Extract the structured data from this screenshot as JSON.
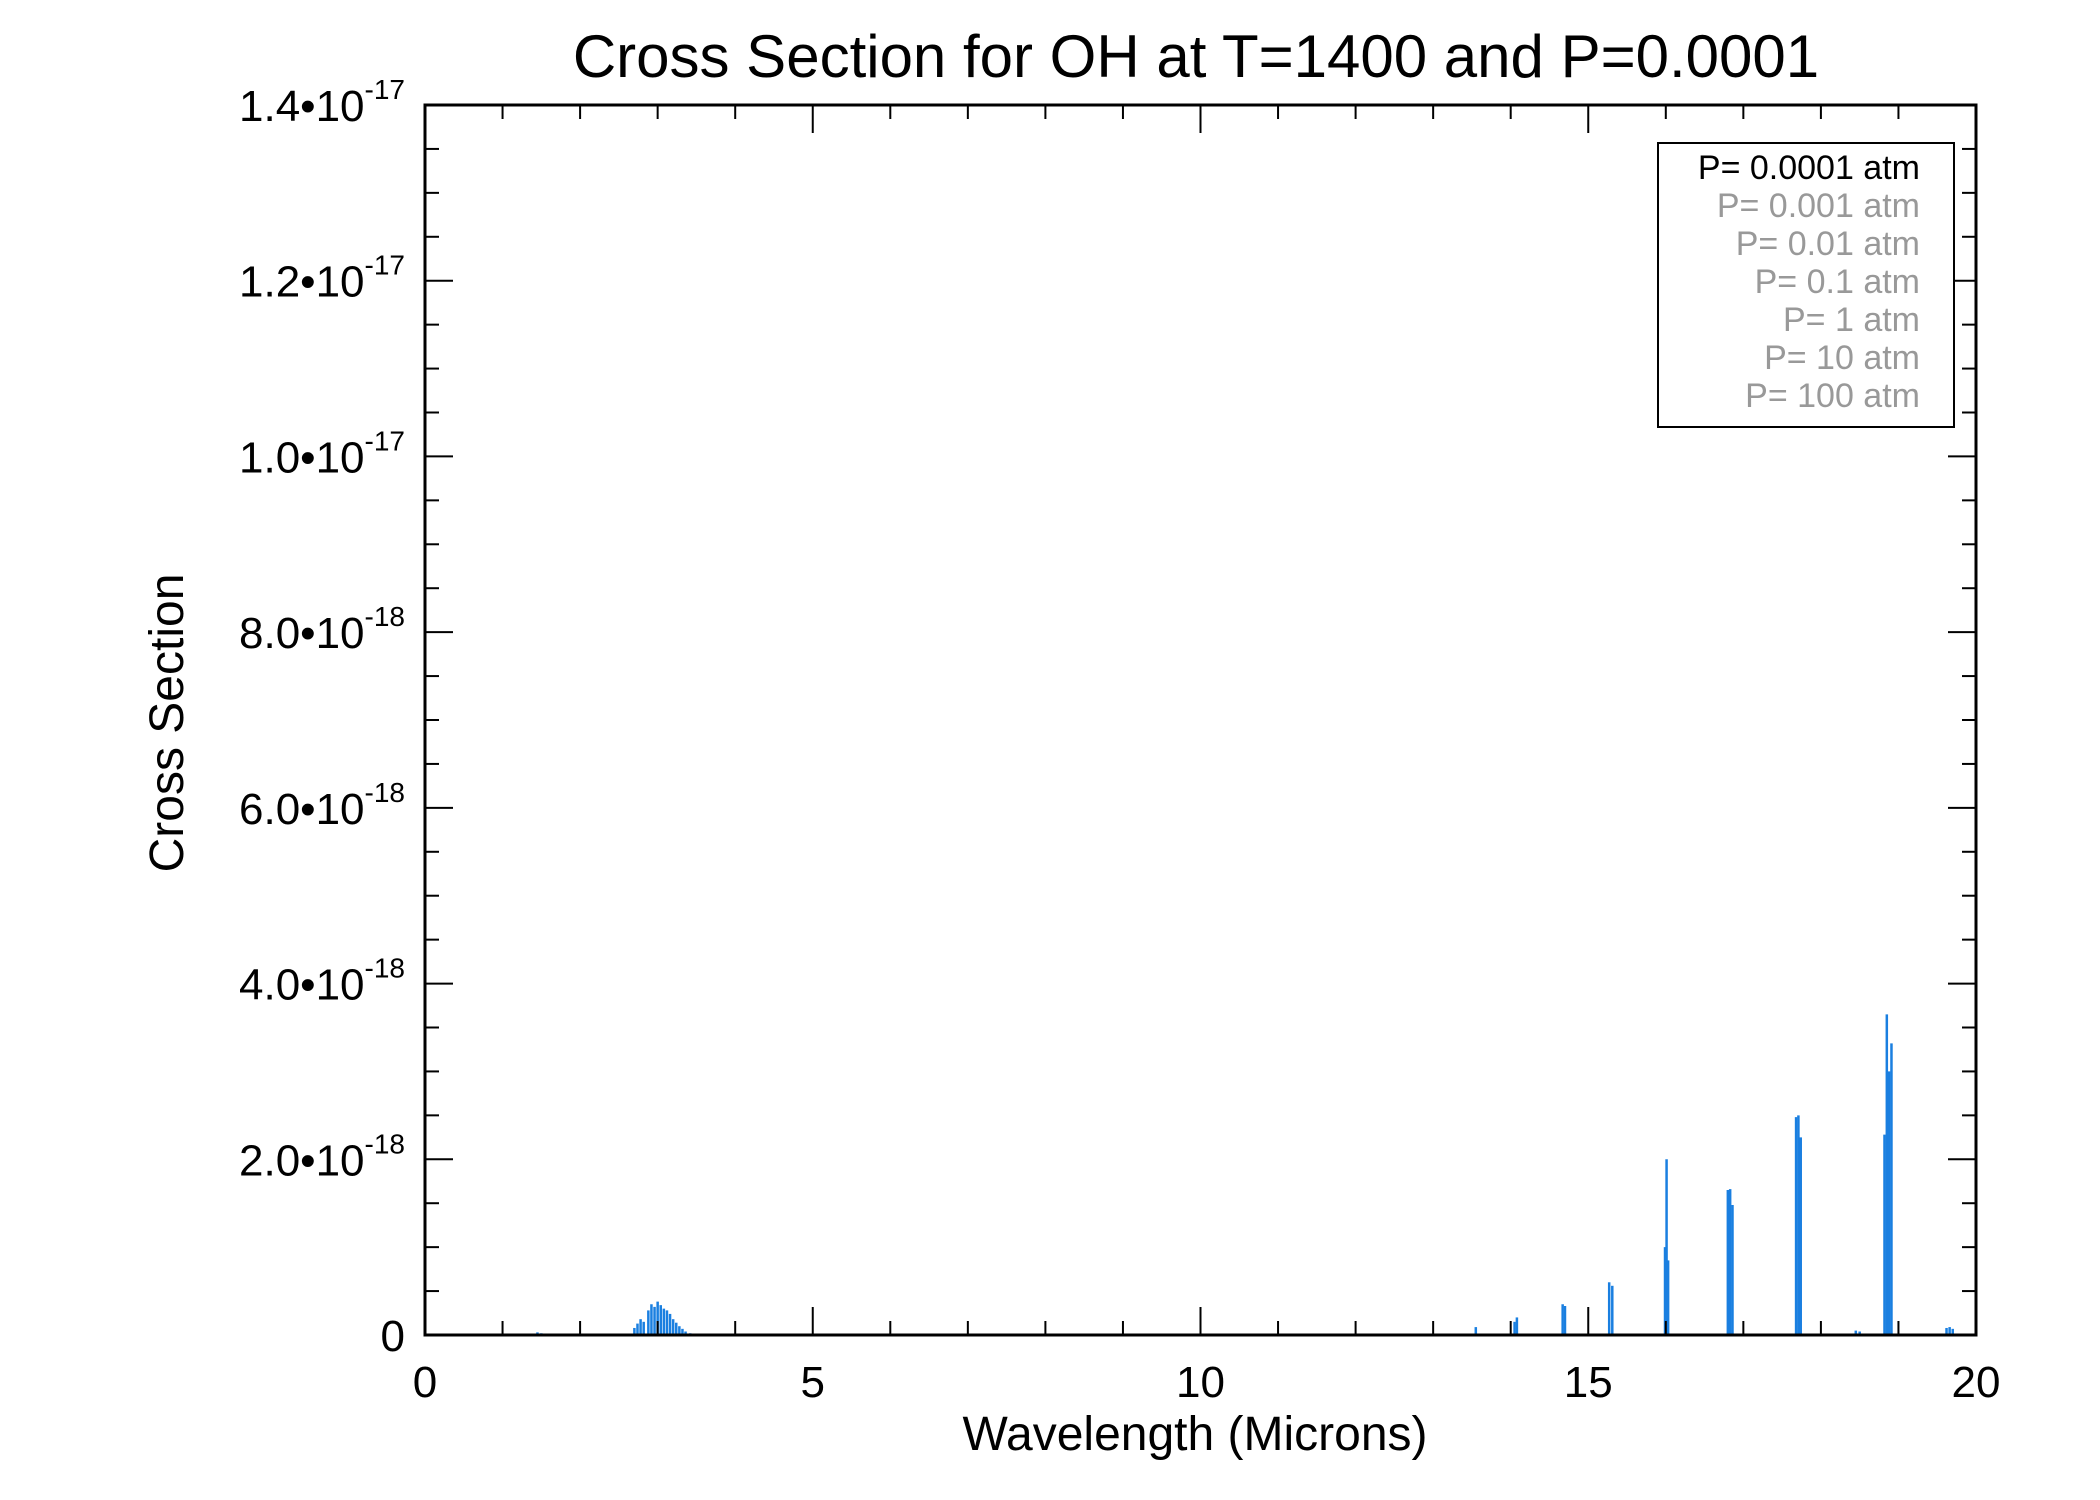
{
  "chart_data": {
    "type": "line",
    "title": "Cross Section for OH at T=1400 and P=0.0001",
    "xlabel": "Wavelength (Microns)",
    "ylabel": "Cross Section",
    "xlim": [
      0,
      20
    ],
    "ylim": [
      0,
      1.4e-17
    ],
    "xticks": [
      {
        "value": 0,
        "label": "0"
      },
      {
        "value": 5,
        "label": "5"
      },
      {
        "value": 10,
        "label": "10"
      },
      {
        "value": 15,
        "label": "15"
      },
      {
        "value": 20,
        "label": "20"
      }
    ],
    "yticks": [
      {
        "value": 0,
        "mant": "0",
        "exp": ""
      },
      {
        "value": 2e-18,
        "mant": "2.0•10",
        "exp": "-18"
      },
      {
        "value": 4e-18,
        "mant": "4.0•10",
        "exp": "-18"
      },
      {
        "value": 6e-18,
        "mant": "6.0•10",
        "exp": "-18"
      },
      {
        "value": 8e-18,
        "mant": "8.0•10",
        "exp": "-18"
      },
      {
        "value": 1e-17,
        "mant": "1.0•10",
        "exp": "-17"
      },
      {
        "value": 1.2e-17,
        "mant": "1.2•10",
        "exp": "-17"
      },
      {
        "value": 1.4e-17,
        "mant": "1.4•10",
        "exp": "-17"
      }
    ],
    "legend": {
      "placement": "top-right",
      "entries": [
        {
          "label": "P= 0.0001 atm",
          "color": "#000000"
        },
        {
          "label": "P= 0.001 atm",
          "color": "#999999"
        },
        {
          "label": "P= 0.01 atm",
          "color": "#999999"
        },
        {
          "label": "P= 0.1 atm",
          "color": "#999999"
        },
        {
          "label": "P= 1 atm",
          "color": "#999999"
        },
        {
          "label": "P= 10 atm",
          "color": "#999999"
        },
        {
          "label": "P= 100 atm",
          "color": "#999999"
        }
      ]
    },
    "series": [
      {
        "name": "P= 0.0001 atm",
        "color": "#1a7fe0",
        "style": "spectral lines (cross section vs wavelength)",
        "lines": [
          {
            "x": 1.45,
            "y": 3e-20
          },
          {
            "x": 1.5,
            "y": 2e-20
          },
          {
            "x": 2.7,
            "y": 8e-20
          },
          {
            "x": 2.74,
            "y": 1.3e-19
          },
          {
            "x": 2.78,
            "y": 1.8e-19
          },
          {
            "x": 2.82,
            "y": 1.5e-19
          },
          {
            "x": 2.88,
            "y": 2.8e-19
          },
          {
            "x": 2.92,
            "y": 3.5e-19
          },
          {
            "x": 2.96,
            "y": 3.2e-19
          },
          {
            "x": 3.0,
            "y": 3.8e-19
          },
          {
            "x": 3.04,
            "y": 3.4e-19
          },
          {
            "x": 3.08,
            "y": 3e-19
          },
          {
            "x": 3.12,
            "y": 2.8e-19
          },
          {
            "x": 3.16,
            "y": 2.4e-19
          },
          {
            "x": 3.2,
            "y": 1.8e-19
          },
          {
            "x": 3.24,
            "y": 1.4e-19
          },
          {
            "x": 3.28,
            "y": 1e-19
          },
          {
            "x": 3.32,
            "y": 7e-20
          },
          {
            "x": 3.36,
            "y": 4e-20
          },
          {
            "x": 3.42,
            "y": 2e-20
          },
          {
            "x": 12.6,
            "y": 1e-20
          },
          {
            "x": 13.55,
            "y": 9e-20
          },
          {
            "x": 14.05,
            "y": 1.5e-19
          },
          {
            "x": 14.08,
            "y": 2e-19
          },
          {
            "x": 14.67,
            "y": 3.5e-19
          },
          {
            "x": 14.7,
            "y": 3.3e-19
          },
          {
            "x": 15.27,
            "y": 6e-19
          },
          {
            "x": 15.31,
            "y": 5.6e-19
          },
          {
            "x": 15.99,
            "y": 1e-18
          },
          {
            "x": 16.01,
            "y": 2e-18
          },
          {
            "x": 16.03,
            "y": 8.5e-19
          },
          {
            "x": 16.8,
            "y": 1.65e-18
          },
          {
            "x": 16.83,
            "y": 1.66e-18
          },
          {
            "x": 16.86,
            "y": 1.48e-18
          },
          {
            "x": 17.68,
            "y": 2.48e-18
          },
          {
            "x": 17.71,
            "y": 2.5e-18
          },
          {
            "x": 17.74,
            "y": 2.25e-18
          },
          {
            "x": 18.45,
            "y": 5e-20
          },
          {
            "x": 18.5,
            "y": 4e-20
          },
          {
            "x": 18.82,
            "y": 2.28e-18
          },
          {
            "x": 18.85,
            "y": 3.65e-18
          },
          {
            "x": 18.88,
            "y": 3e-18
          },
          {
            "x": 18.91,
            "y": 3.32e-18
          },
          {
            "x": 19.62,
            "y": 8e-20
          },
          {
            "x": 19.66,
            "y": 9e-20
          },
          {
            "x": 19.7,
            "y": 7e-20
          }
        ]
      }
    ]
  }
}
